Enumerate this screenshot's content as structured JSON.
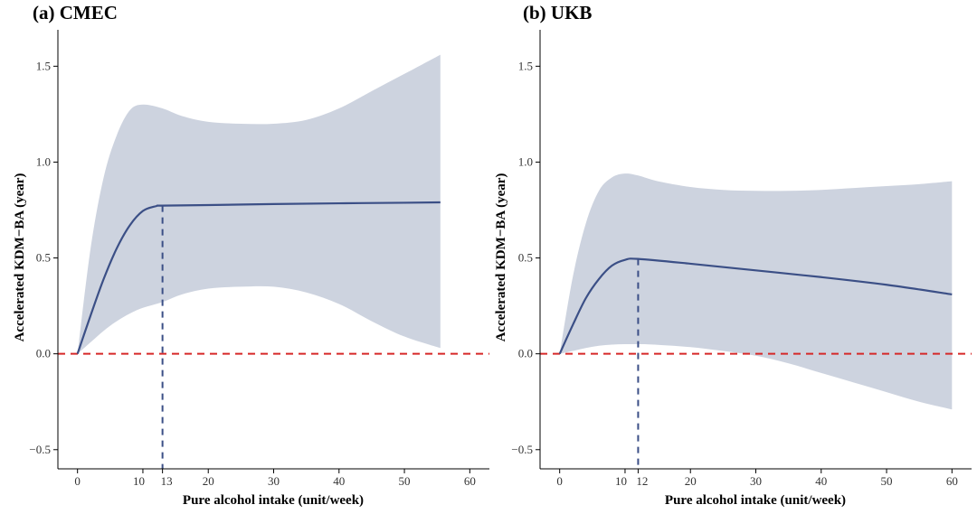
{
  "figure": {
    "colors": {
      "ci_band": "#cdd3df",
      "curve": "#3b4f86",
      "threshold": "#3b4f86",
      "reference": "#d62828"
    }
  },
  "chart_data": [
    {
      "type": "line",
      "title": "(a) CMEC",
      "xlabel": "Pure alcohol intake (unit/week)",
      "ylabel": "Accelerated KDM−BA (year)",
      "xlim": [
        -3,
        63
      ],
      "ylim": [
        -0.6,
        1.69
      ],
      "x_ticks": [
        0,
        10,
        13,
        20,
        30,
        40,
        50,
        60
      ],
      "x_tick_labels": [
        "0",
        "10",
        "13",
        "20",
        "30",
        "40",
        "50",
        "60"
      ],
      "y_ticks": [
        -0.5,
        0.0,
        0.5,
        1.0,
        1.5
      ],
      "y_tick_labels": [
        "−0.5",
        "0.0",
        "0.5",
        "1.0",
        "1.5"
      ],
      "threshold_x": 13,
      "reference_y": 0,
      "series": [
        {
          "name": "estimate",
          "x": [
            0,
            2,
            4,
            6,
            8,
            10,
            12,
            13,
            20,
            30,
            40,
            50,
            55.5
          ],
          "y": [
            0,
            0.2,
            0.39,
            0.55,
            0.67,
            0.745,
            0.77,
            0.773,
            0.776,
            0.781,
            0.785,
            0.788,
            0.79
          ]
        },
        {
          "name": "ci_upper",
          "x": [
            0,
            2,
            4,
            6,
            8,
            10,
            13,
            16,
            20,
            25,
            30,
            35,
            40,
            45,
            50,
            55.5
          ],
          "y": [
            0,
            0.55,
            0.92,
            1.14,
            1.27,
            1.3,
            1.28,
            1.24,
            1.21,
            1.2,
            1.2,
            1.22,
            1.28,
            1.37,
            1.46,
            1.56
          ]
        },
        {
          "name": "ci_lower",
          "x": [
            0,
            2,
            4,
            6,
            8,
            10,
            13,
            16,
            20,
            25,
            30,
            35,
            40,
            45,
            50,
            55.5
          ],
          "y": [
            0,
            0.06,
            0.12,
            0.17,
            0.21,
            0.24,
            0.27,
            0.31,
            0.34,
            0.35,
            0.35,
            0.32,
            0.26,
            0.17,
            0.09,
            0.03
          ]
        }
      ]
    },
    {
      "type": "line",
      "title": "(b) UKB",
      "xlabel": "Pure alcohol intake (unit/week)",
      "ylabel": "Accelerated KDM−BA (year)",
      "xlim": [
        -3,
        63
      ],
      "ylim": [
        -0.6,
        1.69
      ],
      "x_ticks": [
        0,
        10,
        12,
        20,
        30,
        40,
        50,
        60
      ],
      "x_tick_labels": [
        "0",
        "10",
        "12",
        "20",
        "30",
        "40",
        "50",
        "60"
      ],
      "y_ticks": [
        -0.5,
        0.0,
        0.5,
        1.0,
        1.5
      ],
      "y_tick_labels": [
        "−0.5",
        "0.0",
        "0.5",
        "1.0",
        "1.5"
      ],
      "threshold_x": 12,
      "reference_y": 0,
      "series": [
        {
          "name": "estimate",
          "x": [
            0,
            2,
            4,
            6,
            8,
            10,
            12,
            20,
            30,
            40,
            50,
            60
          ],
          "y": [
            0,
            0.15,
            0.29,
            0.39,
            0.46,
            0.49,
            0.495,
            0.47,
            0.435,
            0.4,
            0.36,
            0.31
          ]
        },
        {
          "name": "ci_upper",
          "x": [
            0,
            2,
            4,
            6,
            8,
            10,
            12,
            15,
            20,
            25,
            30,
            35,
            40,
            45,
            50,
            55,
            60
          ],
          "y": [
            0,
            0.4,
            0.68,
            0.85,
            0.92,
            0.94,
            0.93,
            0.9,
            0.87,
            0.855,
            0.85,
            0.85,
            0.855,
            0.865,
            0.875,
            0.885,
            0.9
          ]
        },
        {
          "name": "ci_lower",
          "x": [
            0,
            2,
            4,
            6,
            8,
            10,
            12,
            15,
            20,
            25,
            30,
            35,
            40,
            45,
            50,
            55,
            60
          ],
          "y": [
            0,
            0.015,
            0.03,
            0.042,
            0.048,
            0.05,
            0.05,
            0.047,
            0.035,
            0.015,
            -0.01,
            -0.05,
            -0.1,
            -0.15,
            -0.2,
            -0.25,
            -0.29
          ]
        }
      ]
    }
  ]
}
